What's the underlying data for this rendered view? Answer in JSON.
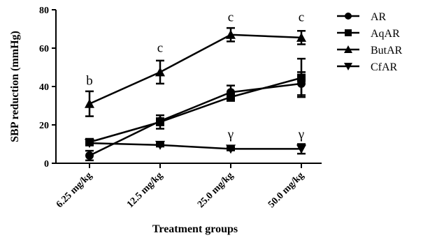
{
  "chart_data": {
    "type": "line",
    "xlabel": "Treatment groups",
    "ylabel": "SBP reduction (mmHg)",
    "ylim": [
      0,
      80
    ],
    "yticks": [
      0,
      20,
      40,
      60,
      80
    ],
    "categories": [
      "6.25 mg/kg",
      "12.5 mg/kg",
      "25.0 mg/kg",
      "50.0 mg/kg"
    ],
    "grid": false,
    "legend_position": "right",
    "series": [
      {
        "name": "AR",
        "marker": "circle",
        "values": [
          4,
          22,
          37,
          41.5
        ],
        "errors": [
          2.5,
          1.5,
          3.5,
          6
        ]
      },
      {
        "name": "AqAR",
        "marker": "square",
        "values": [
          11,
          21.5,
          34.5,
          44.5
        ],
        "errors": [
          1.5,
          3.5,
          2,
          10
        ]
      },
      {
        "name": "ButAR",
        "marker": "triangle-up",
        "values": [
          31,
          47.5,
          67,
          65.5
        ],
        "errors": [
          6.5,
          6,
          3.5,
          3.5
        ]
      },
      {
        "name": "CfAR",
        "marker": "triangle-down",
        "values": [
          10.5,
          9.5,
          7.5,
          7.5
        ],
        "errors": [
          0.8,
          0.8,
          0.8,
          2.5
        ]
      }
    ],
    "annotations": [
      {
        "category": 0,
        "value": 41,
        "text": "b"
      },
      {
        "category": 1,
        "value": 58,
        "text": "c"
      },
      {
        "category": 2,
        "value": 74,
        "text": "c"
      },
      {
        "category": 3,
        "value": 74,
        "text": "c"
      },
      {
        "category": 2,
        "value": 13,
        "text": "γ"
      },
      {
        "category": 3,
        "value": 13,
        "text": "γ"
      }
    ]
  }
}
